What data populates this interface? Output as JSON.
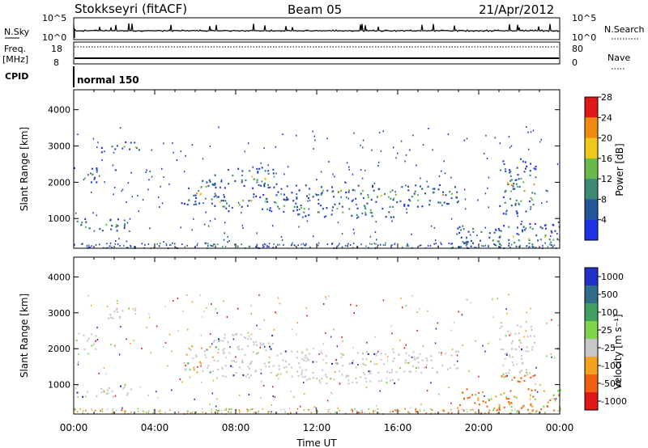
{
  "header": {
    "station": "Stokkseyri (fitACF)",
    "beam": "Beam 05",
    "date": "21/Apr/2012"
  },
  "status_panels": {
    "nsky_label": "N.Sky",
    "nsearch_label": "N.Search",
    "nsky_ticks": [
      "10^5",
      "10^0"
    ],
    "nsearch_ticks": [
      "10^5",
      "10^0"
    ],
    "freq_label_1": "Freq.",
    "freq_label_2": "[MHz]",
    "freq_ticks": [
      "18",
      "8"
    ],
    "nave_label": "Nave",
    "nave_ticks": [
      "80",
      "0"
    ],
    "cpid_label": "CPID",
    "cpid_value": "normal 150"
  },
  "chart_data": [
    {
      "type": "heatmap",
      "panel": "power",
      "xlabel": "Time UT",
      "ylabel": "Slant Range [km]",
      "x_ticks": [
        "00:00",
        "04:00",
        "08:00",
        "12:00",
        "16:00",
        "20:00",
        "00:00"
      ],
      "xlim_hours": [
        0,
        24
      ],
      "y_ticks": [
        1000,
        2000,
        3000,
        4000
      ],
      "ylim": [
        180,
        4550
      ],
      "colorbar_label": "Power [dB]",
      "colorbar_ticks": [
        "4",
        "8",
        "12",
        "16",
        "20",
        "24",
        "28"
      ],
      "colorbar_range": [
        0,
        30
      ],
      "colors": [
        "#1f33e6",
        "#22559a",
        "#3c8a73",
        "#68bb4a",
        "#f0c81c",
        "#f28a12",
        "#e1181a"
      ],
      "scatter_bands": [
        {
          "t0": 0.0,
          "t1": 1.2,
          "r0": 2000,
          "r1": 2450
        },
        {
          "t0": 1.2,
          "t1": 3.2,
          "r0": 2850,
          "r1": 3150
        },
        {
          "t0": 0.0,
          "t1": 2.8,
          "r0": 680,
          "r1": 1020
        },
        {
          "t0": 5.3,
          "t1": 7.0,
          "r0": 1350,
          "r1": 2100
        },
        {
          "t0": 6.8,
          "t1": 10.0,
          "r0": 1850,
          "r1": 2450
        },
        {
          "t0": 7.0,
          "t1": 11.0,
          "r0": 1200,
          "r1": 1700
        },
        {
          "t0": 10.0,
          "t1": 14.0,
          "r0": 1500,
          "r1": 1950
        },
        {
          "t0": 11.0,
          "t1": 16.0,
          "r0": 1050,
          "r1": 1450
        },
        {
          "t0": 14.0,
          "t1": 19.0,
          "r0": 1350,
          "r1": 1950
        },
        {
          "t0": 18.8,
          "t1": 21.5,
          "r0": 200,
          "r1": 900
        },
        {
          "t0": 21.5,
          "t1": 24.0,
          "r0": 200,
          "r1": 900
        },
        {
          "t0": 21.0,
          "t1": 22.8,
          "r0": 1100,
          "r1": 2700
        }
      ]
    },
    {
      "type": "heatmap",
      "panel": "velocity",
      "xlabel": "Time UT",
      "ylabel": "Slant Range [km]",
      "x_ticks": [
        "00:00",
        "04:00",
        "08:00",
        "12:00",
        "16:00",
        "20:00",
        "00:00"
      ],
      "xlim_hours": [
        0,
        24
      ],
      "y_ticks": [
        1000,
        2000,
        3000,
        4000
      ],
      "ylim": [
        180,
        4550
      ],
      "colorbar_label": "Velocity [m s⁻¹]",
      "colorbar_ticks": [
        "1000",
        "500",
        "100",
        "25",
        "-25",
        "-100",
        "-500",
        "-1000"
      ],
      "colors": [
        "#2230c8",
        "#2f6e8a",
        "#3fa062",
        "#7ed44a",
        "#c8c8c8",
        "#f4a020",
        "#f06010",
        "#e0181a"
      ],
      "scatter_bands": [
        {
          "t0": 0.0,
          "t1": 1.2,
          "r0": 2000,
          "r1": 2450
        },
        {
          "t0": 1.2,
          "t1": 3.2,
          "r0": 2850,
          "r1": 3150
        },
        {
          "t0": 0.0,
          "t1": 2.8,
          "r0": 680,
          "r1": 1020
        },
        {
          "t0": 5.3,
          "t1": 7.0,
          "r0": 1350,
          "r1": 2100
        },
        {
          "t0": 6.8,
          "t1": 10.0,
          "r0": 1850,
          "r1": 2450
        },
        {
          "t0": 7.0,
          "t1": 11.0,
          "r0": 1200,
          "r1": 1700
        },
        {
          "t0": 10.0,
          "t1": 14.0,
          "r0": 1500,
          "r1": 1950
        },
        {
          "t0": 11.0,
          "t1": 16.0,
          "r0": 1050,
          "r1": 1450
        },
        {
          "t0": 14.0,
          "t1": 19.0,
          "r0": 1350,
          "r1": 1950
        },
        {
          "t0": 18.8,
          "t1": 21.5,
          "r0": 200,
          "r1": 900
        },
        {
          "t0": 21.5,
          "t1": 24.0,
          "r0": 200,
          "r1": 900
        },
        {
          "t0": 21.0,
          "t1": 22.8,
          "r0": 1100,
          "r1": 2700
        }
      ]
    }
  ]
}
